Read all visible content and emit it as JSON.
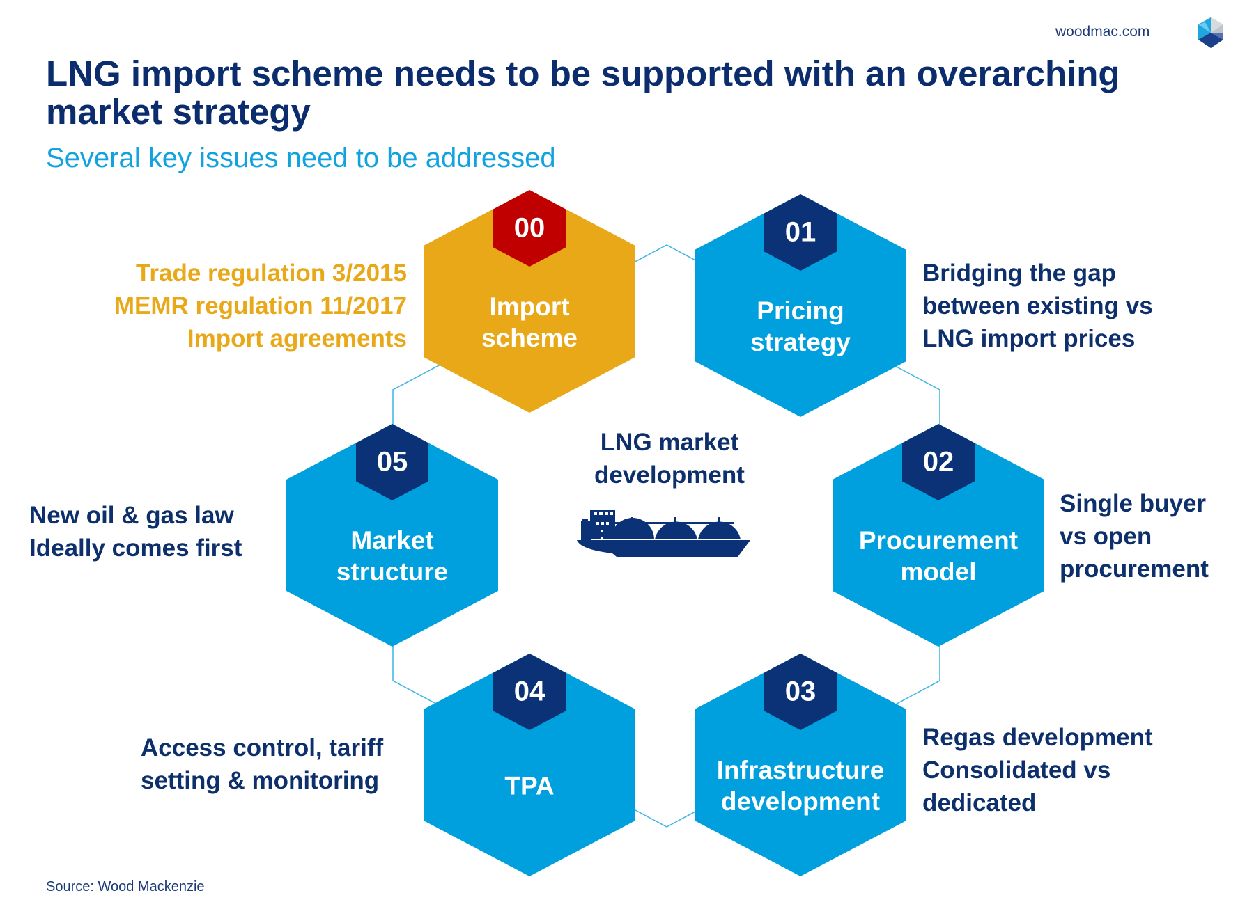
{
  "header": {
    "site": "woodmac.com",
    "logo": "woodmac-cube-logo",
    "title": "LNG import scheme needs to be supported with an overarching market strategy",
    "subtitle": "Several key issues need to be addressed"
  },
  "colors": {
    "blue": "#00a0df",
    "navy": "#0b3277",
    "orange": "#e8a817",
    "red": "#c00000",
    "text": "#0d2f6b"
  },
  "center": {
    "line1": "LNG market",
    "line2": "development",
    "icon": "lng-ship-icon"
  },
  "nodes": [
    {
      "number": "00",
      "line1": "Import",
      "line2": "scheme",
      "notes": [
        "Trade regulation 3/2015",
        "MEMR regulation 11/2017",
        "Import agreements"
      ]
    },
    {
      "number": "01",
      "line1": "Pricing",
      "line2": "strategy",
      "notes": [
        "Bridging the gap",
        "between existing vs",
        "LNG import prices"
      ]
    },
    {
      "number": "02",
      "line1": "Procurement",
      "line2": "model",
      "notes": [
        "Single buyer",
        "vs open",
        "procurement"
      ]
    },
    {
      "number": "03",
      "line1": "Infrastructure",
      "line2": "development",
      "notes": [
        "Regas development",
        "Consolidated vs",
        "dedicated"
      ]
    },
    {
      "number": "04",
      "line1": "TPA",
      "line2": "",
      "notes": [
        "Access control, tariff",
        "setting & monitoring"
      ]
    },
    {
      "number": "05",
      "line1": "Market",
      "line2": "structure",
      "notes": [
        "New oil & gas law",
        "Ideally comes first"
      ]
    }
  ],
  "footer": {
    "source": "Source: Wood Mackenzie"
  }
}
